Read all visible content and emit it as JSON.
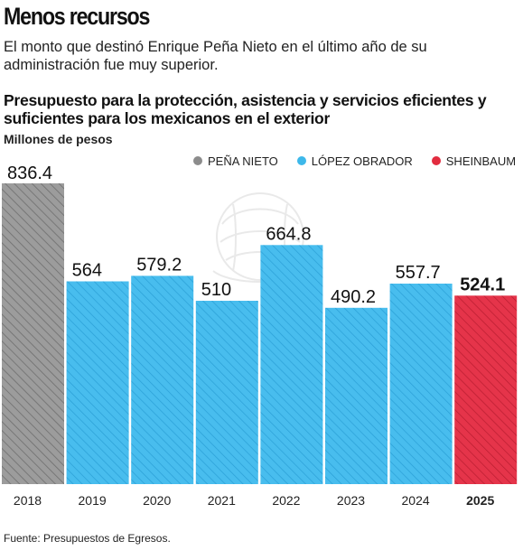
{
  "header": {
    "headline": "Menos recursos",
    "subhead": "El monto que destinó Enrique Peña Nieto en el último año de su administración fue muy superior."
  },
  "chart_data": {
    "type": "bar",
    "title": "Presupuesto para la protección, asistencia y servicios eficientes y suficientes para los mexicanos en el exterior",
    "ylabel": "Millones de pesos",
    "xlabel": "",
    "categories": [
      "2018",
      "2019",
      "2020",
      "2021",
      "2022",
      "2023",
      "2024",
      "2025"
    ],
    "values": [
      836.4,
      564,
      579.2,
      510,
      664.8,
      490.2,
      557.7,
      524.1
    ],
    "value_labels": [
      "836.4",
      "564",
      "579.2",
      "510",
      "664.8",
      "490.2",
      "557.7",
      "524.1"
    ],
    "administrations": [
      "PEÑA NIETO",
      "LÓPEZ OBRADOR",
      "LÓPEZ OBRADOR",
      "LÓPEZ OBRADOR",
      "LÓPEZ OBRADOR",
      "LÓPEZ OBRADOR",
      "LÓPEZ OBRADOR",
      "SHEINBAUM"
    ],
    "highlight": "2025",
    "ylim": [
      0,
      836.4
    ],
    "grid": false,
    "legend_position": "top-right",
    "legend": [
      {
        "name": "PEÑA NIETO",
        "color": "#8c8c8c"
      },
      {
        "name": "LÓPEZ OBRADOR",
        "color": "#3db8ea"
      },
      {
        "name": "SHEINBAUM",
        "color": "#e22c3f"
      }
    ]
  },
  "footer": {
    "source": "Fuente: Presupuestos de Egresos."
  }
}
